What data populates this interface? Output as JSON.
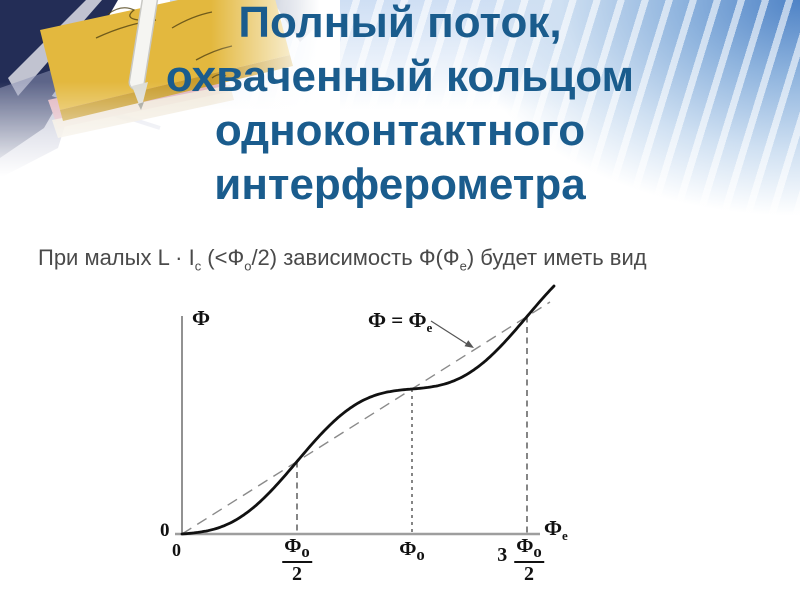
{
  "slide": {
    "title_lines": [
      "Полный поток,",
      "охваченный кольцом",
      "одноконтактного",
      "интерферометра"
    ],
    "title_color": "#1a5c8d",
    "body": {
      "p1": "При малых L",
      "dot": " · ",
      "p2": "I",
      "sub_c": "c",
      "p3": " (<Ф",
      "sub_o": "о",
      "p4": "/2) зависимость Ф(Ф",
      "sub_e": "е",
      "p5": ") будет иметь вид"
    }
  },
  "graph": {
    "y_label": "Ф",
    "x_label_main": "Ф",
    "x_label_sub": "е",
    "origin_zero_y": "0",
    "origin_zero_x": "0",
    "line_label_main": "Ф = Ф",
    "line_label_sub": "е",
    "tick_half_num": "Ф",
    "tick_half_num_sub": "о",
    "tick_half_den": "2",
    "tick_one_main": "Ф",
    "tick_one_sub": "о",
    "tick_three_half_coef": "3",
    "tick_three_half_num": "Ф",
    "tick_three_half_num_sub": "о",
    "tick_three_half_den": "2"
  },
  "chart_data": {
    "type": "line",
    "title": "",
    "xlabel": "Фе",
    "ylabel": "Ф",
    "x_unit": "Фо",
    "x_ticks": [
      {
        "pos": 0,
        "label": "0"
      },
      {
        "pos": 0.5,
        "label": "Фо/2"
      },
      {
        "pos": 1,
        "label": "Фо"
      },
      {
        "pos": 1.5,
        "label": "3Фо/2"
      }
    ],
    "series": [
      {
        "name": "Ф(Фе)",
        "style": "solid",
        "model_units": "y = x + 0.087·sin(2πx), x и y в единицах Фо",
        "crossings_with_identity": [
          0,
          0.5,
          1,
          1.5
        ],
        "shape": "плавная ступенчатая кривая, колеблющаяся вокруг прямой Ф=Фе"
      },
      {
        "name": "Ф = Фе",
        "style": "dashed",
        "model_units": "y = x"
      }
    ],
    "annotations": [
      {
        "text": "Ф = Фе",
        "points_to": "штриховая прямая"
      }
    ],
    "guides": "вертикальные штриховые линии при Фо/2, Фо, 3Фо/2",
    "x_range_units": [
      0,
      1.65
    ],
    "grid": false,
    "legend": false
  }
}
